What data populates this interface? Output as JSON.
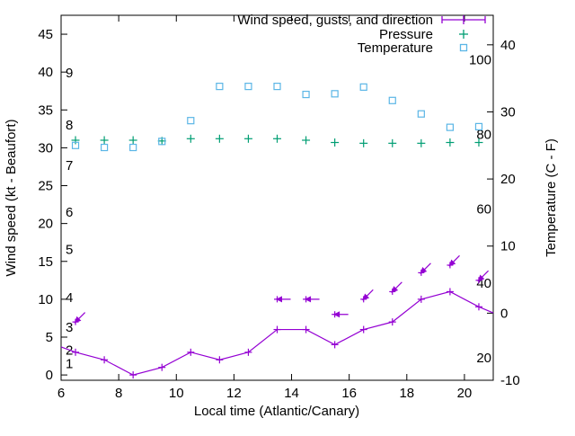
{
  "figure": {
    "bg": "#ffffff",
    "axis_color": "#000000",
    "labels": {
      "x": "Local time (Atlantic/Canary)",
      "y_left": "Wind speed (kt - Beaufort)",
      "y_right": "Temperature (C - F)"
    },
    "legend": {
      "items": [
        {
          "label": "Wind speed, gusts, and direction",
          "symbol": "errorbar-line",
          "color": "#9400d3"
        },
        {
          "label": "Pressure",
          "symbol": "plus",
          "color": "#009e73"
        },
        {
          "label": "Temperature",
          "symbol": "open-square",
          "color": "#5bb6e6"
        }
      ]
    }
  },
  "chart_data": {
    "type": "line",
    "title": "",
    "xlabel": "Local time (Atlantic/Canary)",
    "ylabel_left": "Wind speed (kt - Beaufort)",
    "ylabel_right": "Temperature (C - F)",
    "grid": false,
    "legend_position": "top-right-inside",
    "x_axis": {
      "range": [
        6,
        21
      ],
      "ticks": [
        6,
        8,
        10,
        12,
        14,
        16,
        18,
        20
      ]
    },
    "y_left_axis": {
      "range": [
        -0.7,
        47.5
      ],
      "ticks": [
        0,
        5,
        10,
        15,
        20,
        25,
        30,
        35,
        40,
        45
      ],
      "beaufort_inside_labels": [
        {
          "text": "1",
          "kt": 1.5
        },
        {
          "text": "2",
          "kt": 3.3
        },
        {
          "text": "3",
          "kt": 6.3
        },
        {
          "text": "4",
          "kt": 10.2
        },
        {
          "text": "5",
          "kt": 16.6
        },
        {
          "text": "6",
          "kt": 21.5
        },
        {
          "text": "7",
          "kt": 27.7
        },
        {
          "text": "8",
          "kt": 33.0
        },
        {
          "text": "9",
          "kt": 39.9
        }
      ]
    },
    "y_right_axis": {
      "range": [
        -10,
        44.4
      ],
      "ticks": [
        -10,
        0,
        10,
        20,
        30,
        40
      ],
      "fahrenheit_inside_labels": [
        20,
        40,
        60,
        80,
        100
      ]
    },
    "series": [
      {
        "name": "Wind speed, gusts, and direction",
        "axis": "left",
        "color": "#9400d3",
        "style": "line+markers",
        "marker": "plus",
        "x": [
          6.0,
          6.5,
          7.5,
          8.5,
          9.5,
          10.5,
          11.5,
          12.5,
          13.5,
          14.5,
          15.5,
          16.5,
          17.5,
          18.5,
          19.5,
          20.5,
          21.0
        ],
        "y": [
          3.7,
          3,
          2,
          0,
          1,
          3,
          2,
          3,
          6,
          6,
          4,
          6,
          7,
          10,
          11,
          9,
          8.2
        ],
        "edge_points_unmarked": true
      },
      {
        "name": "Wind gusts (direction arrows)",
        "axis": "left",
        "color": "#9400d3",
        "style": "vectors",
        "marker": "arrow",
        "points": [
          {
            "x": 6.5,
            "y": 7,
            "dir": "sw"
          },
          {
            "x": 13.5,
            "y": 10,
            "dir": "w"
          },
          {
            "x": 14.5,
            "y": 10,
            "dir": "w"
          },
          {
            "x": 15.5,
            "y": 8,
            "dir": "w"
          },
          {
            "x": 16.5,
            "y": 10,
            "dir": "sw"
          },
          {
            "x": 17.5,
            "y": 11,
            "dir": "sw"
          },
          {
            "x": 18.5,
            "y": 13.5,
            "dir": "sw"
          },
          {
            "x": 19.5,
            "y": 14.5,
            "dir": "sw"
          },
          {
            "x": 20.5,
            "y": 12.5,
            "dir": "sw"
          }
        ]
      },
      {
        "name": "Pressure",
        "axis": "left",
        "color": "#009e73",
        "style": "markers",
        "marker": "plus",
        "x": [
          6.5,
          7.5,
          8.5,
          9.5,
          10.5,
          11.5,
          12.5,
          13.5,
          14.5,
          15.5,
          16.5,
          17.5,
          18.5,
          19.5,
          20.5
        ],
        "y": [
          31.0,
          31.0,
          31.0,
          30.9,
          31.2,
          31.2,
          31.2,
          31.2,
          31.0,
          30.7,
          30.6,
          30.6,
          30.6,
          30.7,
          30.7
        ]
      },
      {
        "name": "Temperature",
        "axis": "right",
        "color": "#5bb6e6",
        "style": "markers",
        "marker": "open-square",
        "x": [
          6.5,
          7.5,
          8.5,
          9.5,
          10.5,
          11.5,
          12.5,
          13.5,
          14.5,
          15.5,
          16.5,
          17.5,
          18.5,
          19.5,
          20.5
        ],
        "y": [
          25.0,
          24.7,
          24.7,
          25.6,
          28.7,
          33.8,
          33.8,
          33.8,
          32.6,
          32.7,
          33.7,
          31.7,
          29.7,
          27.7,
          27.8
        ]
      }
    ]
  }
}
